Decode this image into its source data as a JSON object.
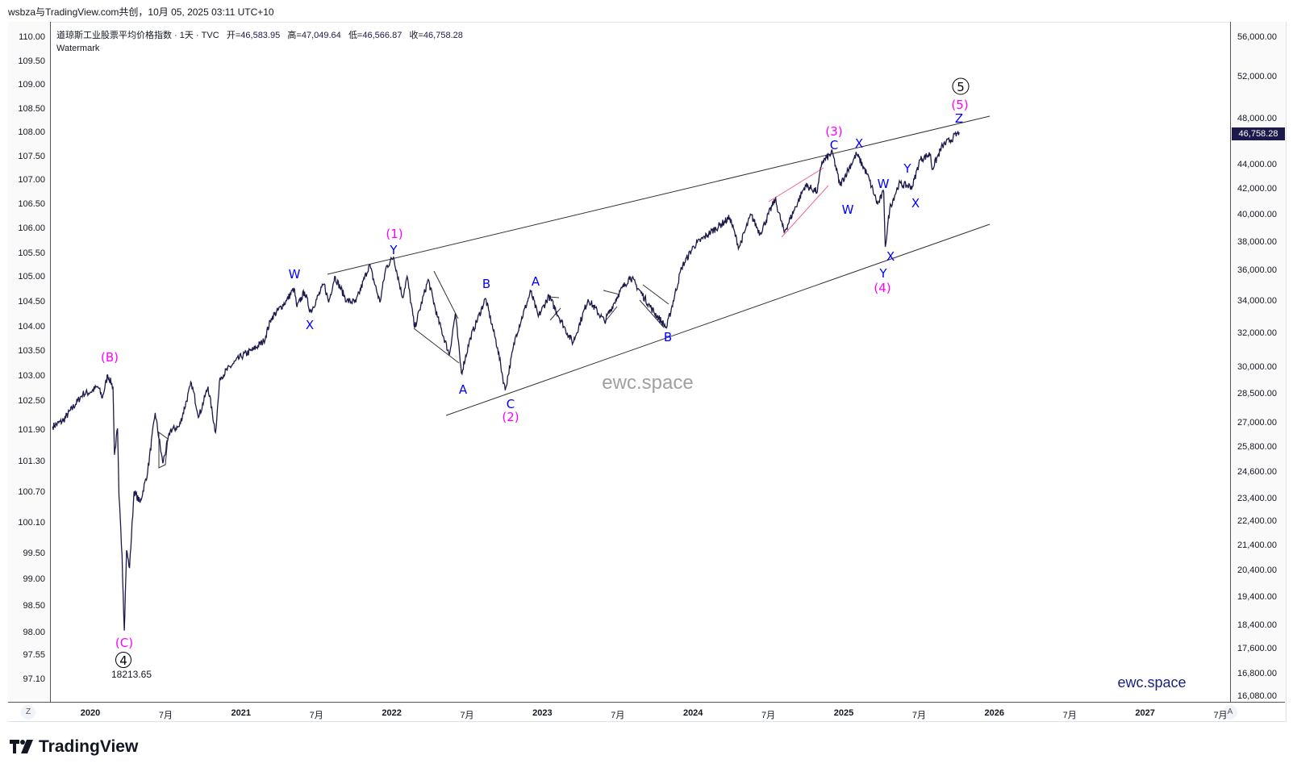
{
  "caption": "wsbza与TradingView.com共创，10月 05, 2025 03:11 UTC+10",
  "legend": {
    "title": "道琼斯工业股票平均价格指数 · 1天 · TVC",
    "open_label": "开=",
    "open": "46,583.95",
    "high_label": "高=",
    "high": "47,049.64",
    "low_label": "低=",
    "low": "46,566.87",
    "close_label": "收=",
    "close": "46,758.28",
    "watermark_label": "Watermark"
  },
  "left_axis": [
    "110.00",
    "109.50",
    "109.00",
    "108.50",
    "108.00",
    "107.50",
    "107.00",
    "106.50",
    "106.00",
    "105.50",
    "105.00",
    "104.50",
    "104.00",
    "103.50",
    "103.00",
    "102.50",
    "101.90",
    "101.30",
    "100.70",
    "100.10",
    "99.50",
    "99.00",
    "98.50",
    "98.00",
    "97.55",
    "97.10"
  ],
  "right_axis": [
    "56,000.00",
    "52,000.00",
    "48,000.00",
    "44,000.00",
    "42,000.00",
    "40,000.00",
    "38,000.00",
    "36,000.00",
    "34,000.00",
    "32,000.00",
    "30,000.00",
    "28,500.00",
    "27,000.00",
    "25,800.00",
    "24,600.00",
    "23,400.00",
    "22,400.00",
    "21,400.00",
    "20,400.00",
    "19,400.00",
    "18,400.00",
    "17,600.00",
    "16,800.00",
    "16,080.00"
  ],
  "last_price": "46,758.28",
  "x_axis": [
    "2020",
    "7月",
    "2021",
    "7月",
    "2022",
    "7月",
    "2023",
    "7月",
    "2024",
    "7月",
    "2025",
    "7月",
    "2026",
    "7月",
    "2027",
    "7月"
  ],
  "corner_left": "Z",
  "corner_right": "A",
  "low_annotation": "18213.65",
  "watermark_center": "ewc.space",
  "watermark_corner": "ewc.space",
  "brand": "TradingView",
  "colors": {
    "line": "#1c1a4a",
    "wave_blue": "#0000ff",
    "wave_magenta": "#ff00ff",
    "pink_line": "#f06292"
  },
  "wave_labels": [
    "(B)",
    "(C)",
    "4",
    "W",
    "X",
    "(1)",
    "Y",
    "A",
    "B",
    "C",
    "(2)",
    "A",
    "B",
    "(3)",
    "C",
    "X",
    "W",
    "W",
    "Y",
    "(4)",
    "X",
    "Y",
    "X",
    "5",
    "(5)",
    "Z"
  ],
  "chart_data": {
    "type": "line",
    "title": "道琼斯工业股票平均价格指数 · 1天 · TVC",
    "yscale": "log",
    "ylim": [
      16080,
      56000
    ],
    "xlim": [
      2019.75,
      2027.6
    ],
    "points": [
      [
        2019.75,
        26800
      ],
      [
        2019.82,
        27100
      ],
      [
        2019.95,
        28500
      ],
      [
        2020.0,
        28600
      ],
      [
        2020.05,
        28900
      ],
      [
        2020.08,
        28300
      ],
      [
        2020.115,
        29550
      ],
      [
        2020.15,
        28900
      ],
      [
        2020.16,
        25400
      ],
      [
        2020.18,
        26700
      ],
      [
        2020.19,
        23500
      ],
      [
        2020.21,
        21000
      ],
      [
        2020.225,
        18213.65
      ],
      [
        2020.24,
        21200
      ],
      [
        2020.26,
        20500
      ],
      [
        2020.29,
        23700
      ],
      [
        2020.33,
        23200
      ],
      [
        2020.38,
        24600
      ],
      [
        2020.43,
        27500
      ],
      [
        2020.48,
        25000
      ],
      [
        2020.53,
        26600
      ],
      [
        2020.59,
        26800
      ],
      [
        2020.67,
        29100
      ],
      [
        2020.72,
        27300
      ],
      [
        2020.78,
        28900
      ],
      [
        2020.83,
        26500
      ],
      [
        2020.86,
        29400
      ],
      [
        2020.95,
        30200
      ],
      [
        2021.0,
        30600
      ],
      [
        2021.08,
        31000
      ],
      [
        2021.15,
        31500
      ],
      [
        2021.2,
        32900
      ],
      [
        2021.3,
        34000
      ],
      [
        2021.35,
        34800
      ],
      [
        2021.37,
        33600
      ],
      [
        2021.42,
        34600
      ],
      [
        2021.46,
        33300
      ],
      [
        2021.55,
        35100
      ],
      [
        2021.58,
        33900
      ],
      [
        2021.62,
        35600
      ],
      [
        2021.7,
        34000
      ],
      [
        2021.76,
        33900
      ],
      [
        2021.85,
        36400
      ],
      [
        2021.92,
        33900
      ],
      [
        2021.96,
        36200
      ],
      [
        2022.01,
        36950
      ],
      [
        2022.07,
        34200
      ],
      [
        2022.1,
        35600
      ],
      [
        2022.15,
        32300
      ],
      [
        2022.24,
        35400
      ],
      [
        2022.3,
        33000
      ],
      [
        2022.38,
        30700
      ],
      [
        2022.42,
        33200
      ],
      [
        2022.46,
        29650
      ],
      [
        2022.52,
        31700
      ],
      [
        2022.62,
        34150
      ],
      [
        2022.7,
        31100
      ],
      [
        2022.75,
        28700
      ],
      [
        2022.82,
        31800
      ],
      [
        2022.92,
        34600
      ],
      [
        2022.97,
        33000
      ],
      [
        2023.04,
        34300
      ],
      [
        2023.15,
        32200
      ],
      [
        2023.2,
        31400
      ],
      [
        2023.3,
        34100
      ],
      [
        2023.41,
        32700
      ],
      [
        2023.5,
        34400
      ],
      [
        2023.58,
        35600
      ],
      [
        2023.72,
        33500
      ],
      [
        2023.82,
        32300
      ],
      [
        2023.92,
        36200
      ],
      [
        2024.0,
        37700
      ],
      [
        2024.1,
        38600
      ],
      [
        2024.24,
        39800
      ],
      [
        2024.3,
        37600
      ],
      [
        2024.38,
        40000
      ],
      [
        2024.44,
        38600
      ],
      [
        2024.54,
        41200
      ],
      [
        2024.6,
        38700
      ],
      [
        2024.74,
        42300
      ],
      [
        2024.82,
        41800
      ],
      [
        2024.85,
        44200
      ],
      [
        2024.92,
        45000
      ],
      [
        2024.97,
        42300
      ],
      [
        2025.08,
        44900
      ],
      [
        2025.15,
        43200
      ],
      [
        2025.2,
        41500
      ],
      [
        2025.22,
        40800
      ],
      [
        2025.26,
        41800
      ],
      [
        2025.27,
        37650
      ],
      [
        2025.3,
        40500
      ],
      [
        2025.36,
        42400
      ],
      [
        2025.45,
        42200
      ],
      [
        2025.5,
        44400
      ],
      [
        2025.57,
        44900
      ],
      [
        2025.58,
        43600
      ],
      [
        2025.65,
        45600
      ],
      [
        2025.72,
        46300
      ],
      [
        2025.76,
        46758.28
      ]
    ]
  }
}
